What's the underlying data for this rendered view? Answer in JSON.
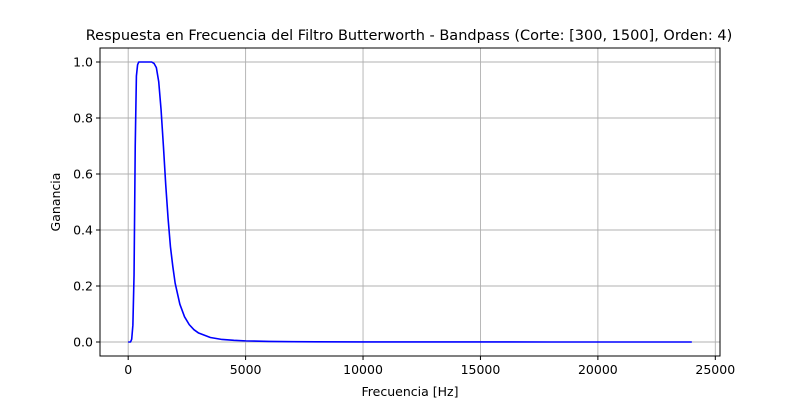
{
  "chart_data": {
    "type": "line",
    "title": "Respuesta en Frecuencia del Filtro Butterworth - Bandpass (Corte: [300, 1500], Orden: 4)",
    "xlabel": "Frecuencia [Hz]",
    "ylabel": "Ganancia",
    "xlim": [
      -1200,
      25200
    ],
    "ylim": [
      -0.05,
      1.05
    ],
    "x_ticks": [
      0,
      5000,
      10000,
      15000,
      20000,
      25000
    ],
    "x_tick_labels": [
      "0",
      "5000",
      "10000",
      "15000",
      "20000",
      "25000"
    ],
    "y_ticks": [
      0.0,
      0.2,
      0.4,
      0.6,
      0.8,
      1.0
    ],
    "y_tick_labels": [
      "0.0",
      "0.2",
      "0.4",
      "0.6",
      "0.8",
      "1.0"
    ],
    "grid": true,
    "colors": {
      "line": "#0000ff"
    },
    "series": [
      {
        "x": [
          0,
          60,
          100,
          150,
          200,
          250,
          300,
          350,
          400,
          450,
          500,
          600,
          700,
          800,
          900,
          1000,
          1100,
          1200,
          1300,
          1400,
          1500,
          1600,
          1700,
          1800,
          1900,
          2000,
          2200,
          2400,
          2600,
          2800,
          3000,
          3500,
          4000,
          4500,
          5000,
          6000,
          7000,
          8000,
          10000,
          12000,
          15000,
          18000,
          20000,
          22000,
          24000
        ],
        "y": [
          0.0,
          0.0,
          0.0,
          0.01,
          0.06,
          0.24,
          0.7,
          0.95,
          0.99,
          1.0,
          1.0,
          1.0,
          1.0,
          1.0,
          1.0,
          1.0,
          0.995,
          0.98,
          0.93,
          0.83,
          0.7,
          0.56,
          0.44,
          0.34,
          0.27,
          0.21,
          0.135,
          0.09,
          0.062,
          0.044,
          0.032,
          0.016,
          0.009,
          0.006,
          0.004,
          0.002,
          0.0013,
          0.0008,
          0.0004,
          0.0002,
          0.0001,
          0.0,
          0.0,
          0.0,
          0.0
        ]
      }
    ]
  }
}
